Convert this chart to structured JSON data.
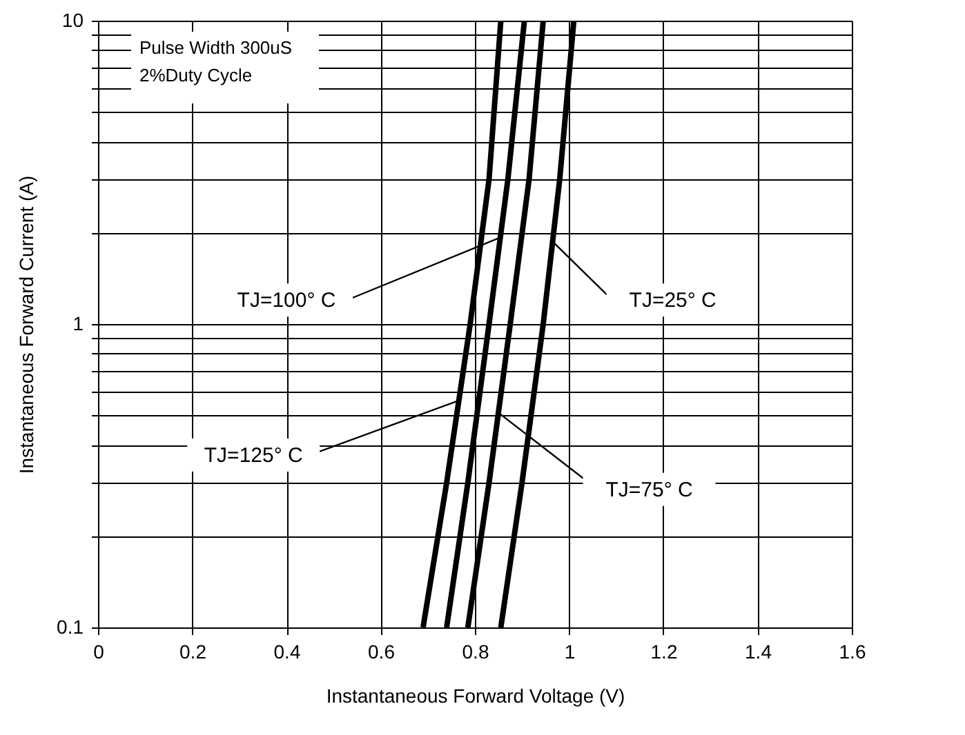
{
  "chart_data": {
    "type": "line",
    "xlabel": "Instantaneous Forward Voltage (V)",
    "ylabel": "Instantaneous Forward Current (A)",
    "xlim": [
      0,
      1.6
    ],
    "xticks": [
      0,
      0.2,
      0.4,
      0.6,
      0.8,
      1,
      1.2,
      1.4,
      1.6
    ],
    "ylim": [
      0.1,
      10
    ],
    "yticks": [
      0.1,
      {
        "value": 0.2,
        "label": null
      },
      {
        "value": 0.3,
        "label": null
      },
      {
        "value": 0.4,
        "label": null
      },
      {
        "value": 0.5,
        "label": null
      },
      {
        "value": 0.6,
        "label": null
      },
      {
        "value": 0.7,
        "label": null
      },
      {
        "value": 0.8,
        "label": null
      },
      {
        "value": 0.9,
        "label": null
      },
      1,
      {
        "value": 2,
        "label": null
      },
      {
        "value": 3,
        "label": null
      },
      {
        "value": 4,
        "label": null
      },
      {
        "value": 5,
        "label": null
      },
      {
        "value": 6,
        "label": null
      },
      {
        "value": 7,
        "label": null
      },
      {
        "value": 8,
        "label": null
      },
      {
        "value": 9,
        "label": null
      },
      10
    ],
    "log": "y",
    "grid": true,
    "marker": "none",
    "line_style": "solid",
    "series": [
      {
        "color": "#000000",
        "x": [
          0.69,
          0.74,
          0.79,
          0.83,
          0.855
        ],
        "values": [
          0.1,
          0.3,
          1,
          3,
          10
        ]
      },
      {
        "color": "#000000",
        "x": [
          0.74,
          0.785,
          0.83,
          0.87,
          0.905
        ],
        "values": [
          0.1,
          0.3,
          1,
          3,
          10
        ]
      },
      {
        "color": "#000000",
        "x": [
          0.785,
          0.83,
          0.875,
          0.915,
          0.945
        ],
        "values": [
          0.1,
          0.3,
          1,
          3,
          10
        ]
      },
      {
        "color": "#000000",
        "x": [
          0.855,
          0.9,
          0.945,
          0.98,
          1.01
        ],
        "values": [
          0.1,
          0.3,
          1,
          3,
          10
        ]
      }
    ],
    "annotations": [
      "Pulse Width 300uS",
      "2%Duty Cycle",
      {
        "text": "TJ=100° C",
        "x": 0.854,
        "y": 1.93
      },
      {
        "text": "TJ=25° C",
        "x": 0.965,
        "y": 1.87
      },
      {
        "text": "TJ=125° C",
        "x": 0.766,
        "y": 0.56
      },
      {
        "text": "TJ=75° C",
        "x": 0.85,
        "y": 0.51
      }
    ]
  }
}
